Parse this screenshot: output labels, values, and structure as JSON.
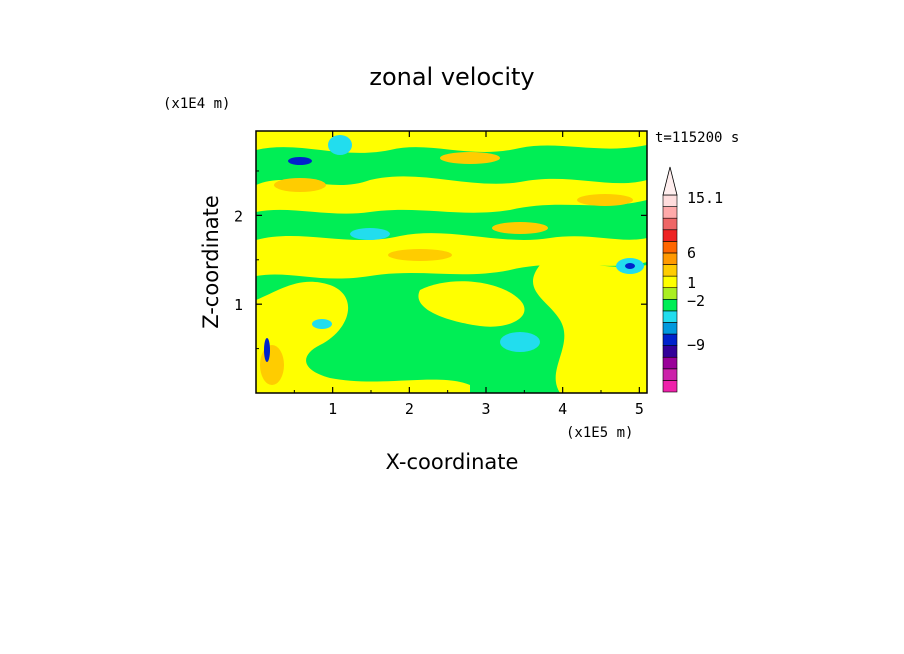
{
  "chart_data": {
    "type": "heatmap",
    "title": "zonal velocity",
    "xlabel": "X-coordinate",
    "ylabel": "Z-coordinate",
    "x_scale_label": "(x1E5 m)",
    "y_scale_label": "(x1E4 m)",
    "time_label": "t=115200 s",
    "xlim": [
      0,
      5.1
    ],
    "ylim": [
      0,
      2.95
    ],
    "x_ticks": [
      "1",
      "2",
      "3",
      "4",
      "5"
    ],
    "y_ticks": [
      "1",
      "2"
    ],
    "colorbar": {
      "levels": [
        -15,
        -12,
        -9,
        -6,
        -4,
        -2,
        -1,
        0,
        1,
        2,
        4,
        6,
        9,
        12,
        15.1
      ],
      "colors": [
        "#ee22aa",
        "#cc22aa",
        "#990099",
        "#330099",
        "#0022cc",
        "#0099dd",
        "#22ddee",
        "#00ee55",
        "#aaee22",
        "#ffff00",
        "#ffcc00",
        "#ff9900",
        "#ff6600",
        "#ee2222",
        "#ee6666",
        "#ffaaaa",
        "#ffdddd"
      ],
      "labels": [
        "15.1",
        "6",
        "1",
        "−2",
        "−9"
      ],
      "extend_max": true
    },
    "dominant_values": {
      "background": "0 to 1 (green)",
      "bands": "1 to 2 (yellow) and 2 to 4 (orange)",
      "minima": "-4 to -2 (blue)"
    }
  }
}
